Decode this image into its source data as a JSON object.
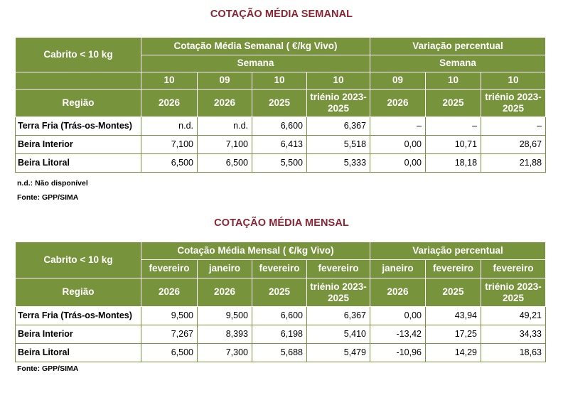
{
  "weekly": {
    "title": "COTAÇÃO MÉDIA SEMANAL",
    "corner_label": "Cabrito < 10 kg",
    "region_label": "Região",
    "group1_label": "Cotação Média Semanal ( €/kg Vivo)",
    "group2_label": "Variação percentual",
    "sub1_label": "Semana",
    "sub2_label": "Semana",
    "periods": [
      "10",
      "09",
      "10",
      "10",
      "09",
      "10",
      "10"
    ],
    "years": [
      "2026",
      "2026",
      "2025",
      "triénio 2023-2025",
      "2026",
      "2025",
      "triénio 2023-2025"
    ],
    "rows": [
      {
        "region": "Terra Fria (Trás-os-Montes)",
        "values": [
          "n.d.",
          "n.d.",
          "6,600",
          "6,367",
          "–",
          "–",
          "–"
        ]
      },
      {
        "region": "Beira Interior",
        "values": [
          "7,100",
          "7,100",
          "6,413",
          "5,518",
          "0,00",
          "10,71",
          "28,67"
        ]
      },
      {
        "region": "Beira Litoral",
        "values": [
          "6,500",
          "6,500",
          "5,500",
          "5,333",
          "0,00",
          "18,18",
          "21,88"
        ]
      }
    ],
    "note1": "n.d.: Não disponível",
    "note2": "Fonte: GPP/SIMA"
  },
  "monthly": {
    "title": "COTAÇÃO MÉDIA MENSAL",
    "corner_label": "Cabrito < 10 kg",
    "region_label": "Região",
    "group1_label": "Cotação Média Mensal ( €/kg Vivo)",
    "group2_label": "Variação percentual",
    "periods": [
      "fevereiro",
      "janeiro",
      "fevereiro",
      "fevereiro",
      "janeiro",
      "fevereiro",
      "fevereiro"
    ],
    "years": [
      "2026",
      "2026",
      "2025",
      "triénio 2023-2025",
      "2026",
      "2025",
      "triénio 2023-2025"
    ],
    "rows": [
      {
        "region": "Terra Fria (Trás-os-Montes)",
        "values": [
          "9,500",
          "9,500",
          "6,600",
          "6,367",
          "0,00",
          "43,94",
          "49,21"
        ]
      },
      {
        "region": "Beira Interior",
        "values": [
          "7,267",
          "8,393",
          "6,198",
          "5,410",
          "-13,42",
          "17,25",
          "34,33"
        ]
      },
      {
        "region": "Beira Litoral",
        "values": [
          "6,500",
          "7,300",
          "5,688",
          "5,479",
          "-10,96",
          "14,29",
          "18,63"
        ]
      }
    ],
    "note1": "Fonte: GPP/SIMA"
  },
  "colors": {
    "header_green": "#77933c",
    "title_red": "#8a2432"
  }
}
